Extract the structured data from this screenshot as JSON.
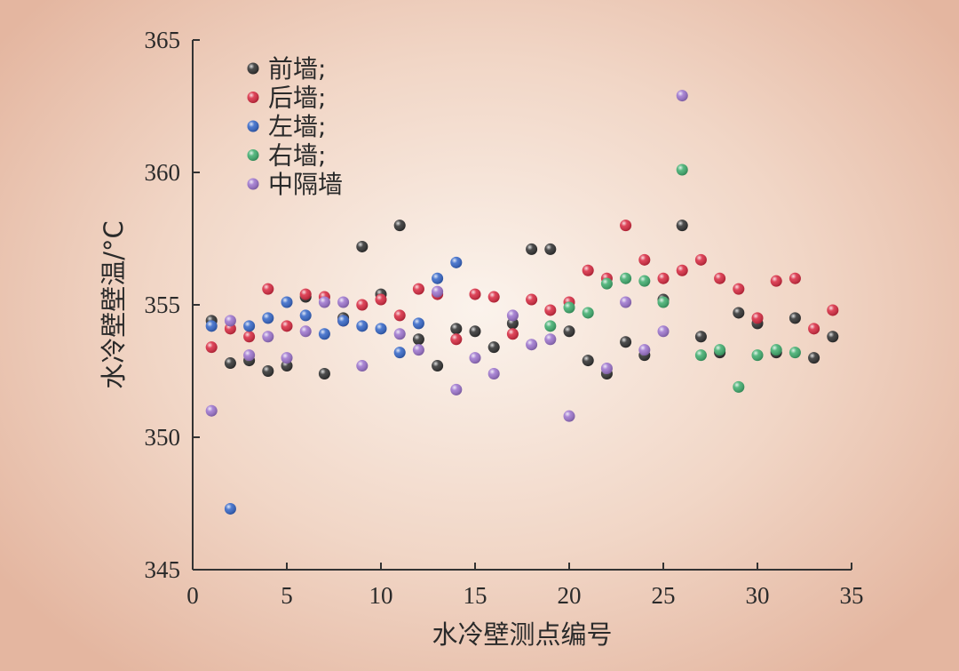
{
  "chart_data": {
    "type": "scatter",
    "xlabel": "水冷壁测点编号",
    "ylabel": "水冷壁壁温/°C",
    "xlim": [
      0,
      35
    ],
    "ylim": [
      345,
      365
    ],
    "xticks": [
      "0",
      "5",
      "10",
      "15",
      "20",
      "25",
      "30",
      "35"
    ],
    "yticks": [
      "345",
      "350",
      "355",
      "360",
      "365"
    ],
    "grid": false,
    "legend_position": "top-left",
    "series": [
      {
        "name": "前墙;",
        "color": "#2b2b2b",
        "points": [
          [
            1,
            354.4
          ],
          [
            2,
            352.8
          ],
          [
            3,
            352.9
          ],
          [
            4,
            352.5
          ],
          [
            5,
            352.7
          ],
          [
            6,
            355.3
          ],
          [
            7,
            352.4
          ],
          [
            8,
            354.5
          ],
          [
            9,
            357.2
          ],
          [
            10,
            355.4
          ],
          [
            11,
            358.0
          ],
          [
            12,
            353.7
          ],
          [
            13,
            352.7
          ],
          [
            14,
            354.1
          ],
          [
            15,
            354.0
          ],
          [
            16,
            353.4
          ],
          [
            17,
            354.3
          ],
          [
            18,
            357.1
          ],
          [
            19,
            357.1
          ],
          [
            20,
            354.0
          ],
          [
            21,
            352.9
          ],
          [
            22,
            352.4
          ],
          [
            23,
            353.6
          ],
          [
            24,
            353.1
          ],
          [
            25,
            355.2
          ],
          [
            26,
            358.0
          ],
          [
            27,
            353.8
          ],
          [
            28,
            353.2
          ],
          [
            29,
            354.7
          ],
          [
            30,
            354.3
          ],
          [
            31,
            353.2
          ],
          [
            32,
            354.5
          ],
          [
            33,
            353.0
          ],
          [
            34,
            353.8
          ]
        ]
      },
      {
        "name": "后墙;",
        "color": "#d8243c",
        "points": [
          [
            1,
            353.4
          ],
          [
            2,
            354.1
          ],
          [
            3,
            353.8
          ],
          [
            4,
            355.6
          ],
          [
            5,
            354.2
          ],
          [
            6,
            355.4
          ],
          [
            7,
            355.3
          ],
          [
            8,
            354.4
          ],
          [
            9,
            355.0
          ],
          [
            10,
            355.2
          ],
          [
            11,
            354.6
          ],
          [
            12,
            355.6
          ],
          [
            13,
            355.4
          ],
          [
            14,
            353.7
          ],
          [
            15,
            355.4
          ],
          [
            16,
            355.3
          ],
          [
            17,
            353.9
          ],
          [
            18,
            355.2
          ],
          [
            19,
            354.8
          ],
          [
            20,
            355.1
          ],
          [
            21,
            356.3
          ],
          [
            22,
            356.0
          ],
          [
            23,
            358.0
          ],
          [
            24,
            356.7
          ],
          [
            25,
            356.0
          ],
          [
            26,
            356.3
          ],
          [
            27,
            356.7
          ],
          [
            28,
            356.0
          ],
          [
            29,
            355.6
          ],
          [
            30,
            354.5
          ],
          [
            31,
            355.9
          ],
          [
            32,
            356.0
          ],
          [
            33,
            354.1
          ],
          [
            34,
            354.8
          ]
        ]
      },
      {
        "name": "左墙;",
        "color": "#2f62c6",
        "points": [
          [
            1,
            354.2
          ],
          [
            2,
            347.3
          ],
          [
            3,
            354.2
          ],
          [
            4,
            354.5
          ],
          [
            5,
            355.1
          ],
          [
            6,
            354.6
          ],
          [
            7,
            353.9
          ],
          [
            8,
            354.4
          ],
          [
            9,
            354.2
          ],
          [
            10,
            354.1
          ],
          [
            11,
            353.2
          ],
          [
            12,
            354.3
          ],
          [
            13,
            356.0
          ],
          [
            14,
            356.6
          ]
        ]
      },
      {
        "name": "右墙;",
        "color": "#3aab6a",
        "points": [
          [
            19,
            354.2
          ],
          [
            20,
            354.9
          ],
          [
            21,
            354.7
          ],
          [
            22,
            355.8
          ],
          [
            23,
            356.0
          ],
          [
            24,
            355.9
          ],
          [
            25,
            355.1
          ],
          [
            26,
            360.1
          ],
          [
            27,
            353.1
          ],
          [
            28,
            353.3
          ],
          [
            29,
            351.9
          ],
          [
            30,
            353.1
          ],
          [
            31,
            353.3
          ],
          [
            32,
            353.2
          ]
        ]
      },
      {
        "name": "中隔墙",
        "color": "#9a70cc",
        "points": [
          [
            1,
            351.0
          ],
          [
            2,
            354.4
          ],
          [
            3,
            353.1
          ],
          [
            4,
            353.8
          ],
          [
            5,
            353.0
          ],
          [
            6,
            354.0
          ],
          [
            7,
            355.1
          ],
          [
            8,
            355.1
          ],
          [
            9,
            352.7
          ],
          [
            10,
            null
          ],
          [
            11,
            353.9
          ],
          [
            12,
            353.3
          ],
          [
            13,
            355.5
          ],
          [
            14,
            351.8
          ],
          [
            15,
            353.0
          ],
          [
            16,
            352.4
          ],
          [
            17,
            354.6
          ],
          [
            18,
            353.5
          ],
          [
            19,
            353.7
          ],
          [
            20,
            350.8
          ],
          [
            22,
            352.6
          ],
          [
            23,
            355.1
          ],
          [
            24,
            353.3
          ],
          [
            25,
            354.0
          ],
          [
            26,
            362.9
          ]
        ]
      }
    ]
  }
}
